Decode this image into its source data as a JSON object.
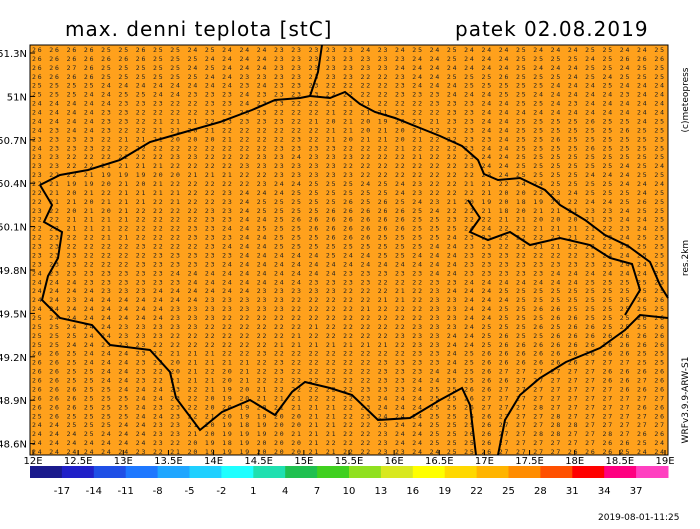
{
  "header": {
    "title": "max. denni teplota [stC]",
    "date": "patek 02.08.2019"
  },
  "map": {
    "lat_labels": [
      "51.3N",
      "51N",
      "50.7N",
      "50.4N",
      "50.1N",
      "49.8N",
      "49.5N",
      "49.2N",
      "48.9N",
      "48.6N"
    ],
    "lon_labels": [
      "12E",
      "12.5E",
      "13E",
      "13.5E",
      "14E",
      "14.5E",
      "15E",
      "15.5E",
      "16E",
      "16.5E",
      "17E",
      "17.5E",
      "18E",
      "18.5E",
      "19E"
    ],
    "rows": [
      "26 26 26 26 25 25 26 25 25 24 25 24 24 24 23 23 23 23 23 24 23 24 25 24 25 24 24 24 25 24 24 24 25 25 24 24 25",
      "26 26 26 26 26 26 26 25 25 25 24 24 24 24 23 23 23 23 23 23 23 23 24 24 25 24 24 24 25 25 25 25 24 25 26 26 26",
      "26 26 27 26 25 25 25 25 25 24 25 24 24 24 23 23 23 23 23 23 23 24 24 24 24 24 24 24 25 24 24 24 25 25 24 25 25",
      "26 26 26 26 25 25 25 25 25 25 24 24 23 23 23 23 23 23 23 22 22 23 24 24 25 25 25 26 25 25 25 24 25 24 25 25 25",
      "25 25 25 25 24 24 24 24 24 24 24 24 23 24 23 23 23 22 22 22 22 23 24 24 24 25 25 25 25 25 24 24 24 25 24 24 24",
      "25 25 25 24 24 25 25 24 24 23 23 23 24 23 23 23 23 22 22 22 22 23 23 23 24 24 24 25 25 24 24 24 24 24 23 24 24",
      "24 24 24 24 24 23 23 23 22 22 23 23 24 23 23 22 22 22 21 21 22 22 22 23 23 23 24 24 25 25 24 23 24 24 24 24 24",
      "24 24 24 24 23 23 22 22 22 22 23 22 23 23 22 22 22 21 22 21 21 22 22 22 23 23 24 24 24 24 24 24 24 24 24 24 24",
      "24 24 24 24 23 23 22 21 21 21 22 23 23 23 23 22 21 20 21 20 19 20 21 21 23 23 24 24 25 25 25 25 26 25 25 24 25",
      "24 23 24 24 23 22 22 21 21 20 21 22 22 22 22 22 22 21 21 20 21 20 21 22 22 23 24 24 25 25 25 25 25 25 26 25 25",
      "23 23 23 23 22 21 21 21 20 20 20 21 22 22 22 23 22 21 20 21 21 20 21 22 22 23 23 24 25 25 26 25 25 25 25 25 25",
      "24 23 23 23 22 22 22 22 22 22 22 22 22 22 23 23 23 23 22 22 22 21 22 22 22 23 24 24 25 25 25 25 26 25 25 25 25",
      "23 23 22 22 22 22 22 22 23 23 22 22 22 23 23 24 23 23 23 22 22 22 21 22 22 23 24 24 25 25 25 25 25 25 25 25 25",
      "23 23 22 22 21 21 21 21 22 22 22 22 23 23 23 23 23 23 22 22 22 22 22 22 22 23 24 24 25 25 25 25 25 25 24 25 24",
      "23 22 22 21 19 19 19 20 20 21 21 21 22 22 23 23 23 23 23 22 22 22 22 22 22 22 23 24 25 25 25 25 24 24 24 25 25",
      "22 21 19 19 20 21 20 21 22 22 22 22 22 23 24 24 25 25 25 24 25 24 23 22 22 21 21 22 24 24 25 25 25 25 24 24 24",
      "22 21 20 21 22 21 21 21 21 22 22 23 24 24 24 25 25 25 25 25 25 24 23 22 22 22 21 20 20 22 23 24 25 25 25 24 25",
      "22 21 21 20 21 21 21 22 21 22 22 23 24 25 25 25 25 25 26 25 26 25 24 23 21 20 19 20 18 19 20 22 24 24 25 26 25",
      "23 22 20 21 20 21 22 22 22 22 23 23 24 25 25 25 25 26 26 26 26 26 25 24 22 22 21 18 20 21 21 21 23 23 24 25 25",
      "22 22 21 21 21 21 22 22 22 22 23 23 24 24 25 26 26 26 26 26 26 26 25 25 23 22 22 21 21 20 20 20 21 23 24 24 25",
      "22 22 21 21 21 22 22 22 22 23 23 24 24 25 25 25 26 26 26 26 26 26 25 25 25 24 24 22 22 21 21 21 21 22 23 24 25",
      "22 23 22 22 21 21 22 22 22 23 23 23 24 24 25 25 25 26 26 26 25 25 25 25 24 23 23 22 22 22 22 21 22 23 24 25 25",
      "23 23 22 22 22 22 23 22 22 22 23 24 24 24 25 25 25 25 25 25 25 25 25 24 24 23 23 22 22 21 21 22 22 22 24 25 25",
      "23 23 23 22 22 22 22 23 23 23 23 23 24 24 24 24 24 25 24 24 25 25 24 24 24 23 23 23 22 22 22 22 23 24 24 25 25",
      "23 23 23 22 22 22 23 23 23 23 23 24 24 24 24 24 24 24 24 24 24 24 24 24 24 23 23 23 23 23 23 23 23 23 24 24 25",
      "24 23 23 23 23 23 23 23 24 24 24 24 24 24 24 24 24 24 23 23 23 23 23 24 24 23 23 23 23 23 24 24 24 24 24 24 25",
      "24 24 24 23 23 23 23 23 23 24 24 24 24 24 24 24 23 23 23 23 22 22 22 23 23 24 24 24 24 24 24 24 25 25 25 25 25",
      "24 24 24 24 23 23 23 24 24 24 24 24 24 23 23 23 23 23 22 22 22 21 22 23 24 24 24 25 25 25 25 25 25 25 25 25 25",
      "24 24 23 24 24 24 24 24 24 24 23 23 23 23 23 22 22 22 22 22 21 21 22 23 23 24 24 24 25 25 25 25 25 25 25 26 26",
      "24 24 24 24 24 24 24 24 23 23 23 23 23 23 23 22 22 22 22 21 22 22 22 23 23 24 24 25 25 26 26 25 25 25 25 25 25",
      "25 24 24 24 24 24 24 24 23 23 23 22 22 22 22 22 22 22 22 22 22 22 22 23 23 24 24 25 25 25 26 26 25 25 25 26 26",
      "25 25 24 24 24 23 23 23 23 23 22 22 22 22 22 22 21 22 22 22 22 22 23 23 23 24 25 25 25 26 25 26 26 25 25 25 26",
      "25 25 25 24 24 23 23 23 22 22 22 22 22 22 22 21 22 22 22 22 22 23 23 23 24 24 25 26 25 25 26 26 26 26 26 26 26",
      "25 25 24 24 23 23 23 22 22 22 22 22 22 22 21 21 21 21 21 21 21 22 23 23 24 24 25 26 26 26 26 26 26 26 26 26 26",
      "26 26 25 24 24 24 23 22 21 21 21 22 22 23 22 22 22 22 22 22 22 22 23 23 24 25 26 26 26 26 26 26 26 26 26 25 25",
      "26 26 25 24 24 24 23 22 20 21 21 21 21 22 23 22 22 22 22 22 23 23 23 23 24 25 26 26 26 26 26 26 27 27 27 25 25",
      "26 26 25 25 24 24 23 22 20 21 22 20 21 22 23 22 22 22 22 22 23 23 23 24 24 25 26 27 27 27 27 27 27 26 26 26 26",
      "26 26 25 25 24 24 23 22 21 21 21 20 21 22 22 22 22 22 22 22 23 23 24 24 25 25 26 26 27 27 27 27 27 26 26 27 26",
      "26 26 26 25 25 24 24 24 23 22 21 19 20 21 22 22 22 22 22 23 23 23 24 25 25 26 26 27 27 27 27 27 27 27 26 26 26",
      "26 26 26 25 25 25 24 24 23 22 20 19 20 21 21 21 22 22 22 23 24 24 24 25 25 26 27 27 27 27 27 27 27 27 27 27 27",
      "26 26 26 25 25 25 24 23 23 22 20 20 19 20 21 21 21 21 22 23 24 24 24 25 25 26 27 27 27 28 27 27 27 27 27 26 26",
      "25 26 25 25 25 25 24 24 23 22 21 20 19 19 20 20 21 21 22 23 24 24 24 25 25 26 26 27 27 27 28 27 27 27 27 27 26",
      "24 24 25 25 25 24 24 23 23 21 20 19 18 19 20 20 21 21 22 22 23 24 24 25 25 25 26 27 27 27 28 28 27 27 27 27 27",
      "24 24 24 25 24 24 24 23 23 21 20 19 19 19 20 21 21 21 22 22 23 24 24 25 25 26 26 27 27 28 28 27 27 28 27 26 26",
      "24 24 24 24 24 24 24 23 22 20 19 18 19 20 20 20 21 22 22 22 23 24 24 25 25 25 26 27 27 27 27 27 27 26 26 25 24",
      "24 24 24 24 24 24 23 22 21 20 19 19 19 20 20 20 21 21 22 22 23 23 24 24 25 25 26 27 27 27 27 26 26 26 25 24 24"
    ]
  },
  "colorbar": {
    "labels": [
      "-17",
      "-14",
      "-11",
      "-8",
      "-5",
      "-2",
      "1",
      "4",
      "7",
      "10",
      "13",
      "16",
      "19",
      "22",
      "25",
      "28",
      "31",
      "34",
      "37"
    ],
    "colors": [
      "#1a1a8c",
      "#2020c8",
      "#1f4fe6",
      "#1e78ff",
      "#20a6ff",
      "#20d0ff",
      "#20ffff",
      "#20e0b0",
      "#20c050",
      "#40d020",
      "#90e020",
      "#d8e820",
      "#ffff00",
      "#ffd800",
      "#ffb400",
      "#ff8c00",
      "#ff5000",
      "#ff0000",
      "#ff0080",
      "#ff40c0"
    ]
  },
  "side": {
    "copyright": "(c)meteopress",
    "resolution": "res.2km",
    "model": "WRFv3.9.9-ARW-S1"
  },
  "footer": {
    "timestamp": "2019-08-01-11:25"
  }
}
